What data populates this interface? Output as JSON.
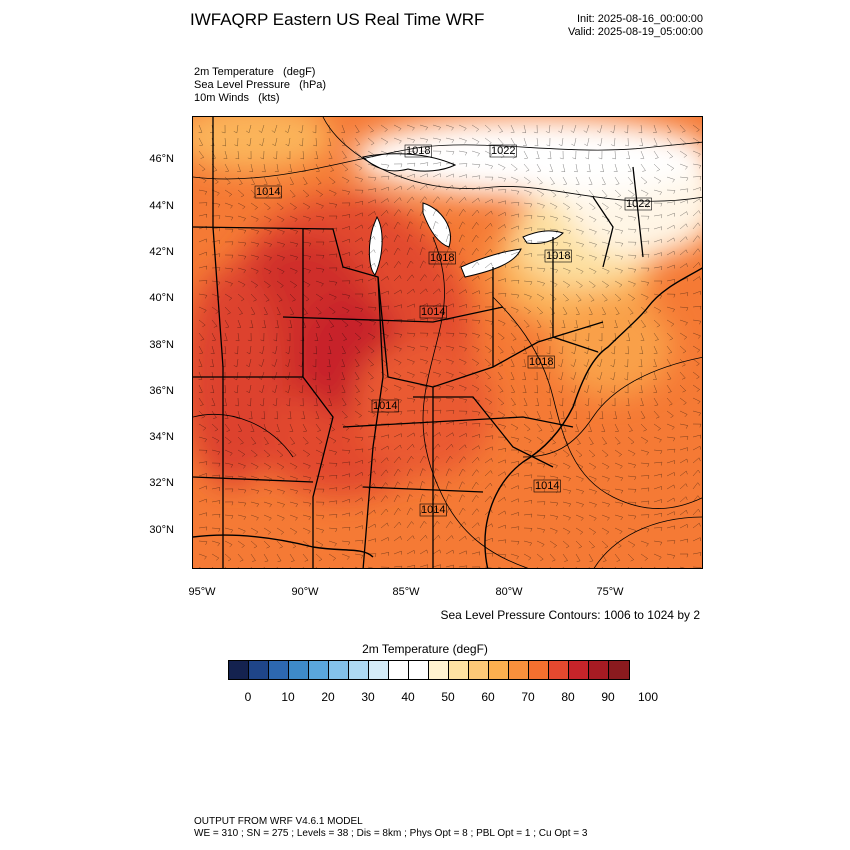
{
  "header": {
    "title": "IWFAQRP Eastern US Real Time WRF",
    "init": "Init: 2025-08-16_00:00:00",
    "valid": "Valid: 2025-08-19_05:00:00"
  },
  "fields": [
    "2m Temperature   (degF)",
    "Sea Level Pressure   (hPa)",
    "10m Winds   (kts)"
  ],
  "map": {
    "lat_labels": [
      "46°N",
      "44°N",
      "42°N",
      "40°N",
      "38°N",
      "36°N",
      "34°N",
      "32°N",
      "30°N"
    ],
    "lon_labels": [
      "95°W",
      "90°W",
      "85°W",
      "80°W",
      "75°W"
    ],
    "isobar_labels": [
      "1018",
      "1022",
      "1014",
      "1022",
      "1018",
      "1018",
      "1014",
      "1018",
      "1014",
      "1014",
      "1014"
    ],
    "colors": {
      "very_hot": "#c7242a",
      "hot": "#e4492f",
      "warm": "#f67f37",
      "mild": "#fcb45a",
      "cool": "#fee3a3",
      "water": "#ffffff",
      "ocean": "#f47e36"
    }
  },
  "contour_note": "Sea Level Pressure Contours: 1006 to 1024 by 2",
  "colorbar": {
    "title": "2m Temperature  (degF)",
    "colors": [
      "#14224f",
      "#1f4588",
      "#2d68b0",
      "#3e8ac8",
      "#5aa6dc",
      "#84c2ea",
      "#aedaf3",
      "#d4ecf8",
      "#ffffff",
      "#ffffff",
      "#fff3d0",
      "#fee3a3",
      "#fdc977",
      "#fcb04f",
      "#f9903c",
      "#f4702f",
      "#e4492f",
      "#c7242a",
      "#a71b23",
      "#8a1a1e"
    ],
    "ticks": [
      "0",
      "10",
      "20",
      "30",
      "40",
      "50",
      "60",
      "70",
      "80",
      "90",
      "100"
    ]
  },
  "footer": {
    "line1": "OUTPUT FROM WRF V4.6.1 MODEL",
    "line2": "WE = 310 ; SN = 275 ; Levels = 38 ; Dis = 8km ; Phys Opt = 8 ; PBL Opt = 1 ; Cu Opt = 3"
  }
}
